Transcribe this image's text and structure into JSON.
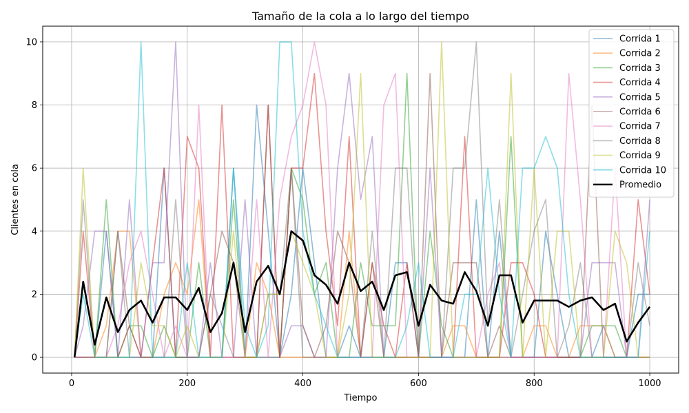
{
  "chart_data": {
    "type": "line",
    "title": "Tamaño de la cola a lo largo del tiempo",
    "xlabel": "Tiempo",
    "ylabel": "Clientes en cola",
    "xlim": [
      -50,
      1050
    ],
    "ylim": [
      -0.5,
      10.5
    ],
    "xticks": [
      0,
      200,
      400,
      600,
      800,
      1000
    ],
    "yticks": [
      0,
      2,
      4,
      6,
      8,
      10
    ],
    "grid": true,
    "legend_position": "top-right",
    "x": [
      5,
      20,
      40,
      60,
      80,
      100,
      120,
      140,
      160,
      180,
      200,
      220,
      240,
      260,
      280,
      300,
      320,
      340,
      360,
      380,
      400,
      420,
      440,
      460,
      480,
      500,
      520,
      540,
      560,
      580,
      600,
      620,
      640,
      660,
      680,
      700,
      720,
      740,
      760,
      780,
      800,
      820,
      840,
      860,
      880,
      900,
      920,
      940,
      960,
      980,
      1000
    ],
    "series": [
      {
        "name": "Corrida 1",
        "color": "#1f77b4",
        "values": [
          0,
          0,
          0,
          4,
          0,
          0,
          0,
          0,
          6,
          0,
          0,
          0,
          0,
          0,
          6,
          0,
          8,
          4,
          0,
          2,
          6,
          3,
          0,
          0,
          1,
          0,
          0,
          0,
          3,
          3,
          0,
          0,
          0,
          0,
          0,
          5,
          0,
          4,
          0,
          0,
          0,
          4,
          2,
          0,
          0,
          0,
          1,
          0,
          0,
          2,
          2
        ]
      },
      {
        "name": "Corrida 2",
        "color": "#ff7f0e",
        "values": [
          0,
          0,
          0,
          1,
          4,
          4,
          0,
          0,
          2,
          3,
          2,
          5,
          0,
          0,
          0,
          0,
          3,
          2,
          0,
          0,
          0,
          0,
          0,
          0,
          4,
          0,
          0,
          0,
          0,
          0,
          0,
          0,
          0,
          1,
          1,
          0,
          0,
          0,
          0,
          0,
          1,
          1,
          0,
          0,
          1,
          1,
          1,
          0,
          0,
          0,
          0
        ]
      },
      {
        "name": "Corrida 3",
        "color": "#2ca02c",
        "values": [
          0,
          0,
          0,
          5,
          0,
          1,
          1,
          0,
          1,
          0,
          0,
          3,
          0,
          0,
          5,
          0,
          0,
          0,
          0,
          6,
          5,
          2,
          3,
          0,
          0,
          3,
          1,
          1,
          1,
          9,
          0,
          4,
          1,
          0,
          0,
          0,
          0,
          0,
          7,
          0,
          0,
          0,
          0,
          0,
          0,
          1,
          1,
          1,
          0,
          0,
          0
        ]
      },
      {
        "name": "Corrida 4",
        "color": "#d62728",
        "values": [
          0,
          4,
          0,
          0,
          0,
          1,
          0,
          3,
          6,
          0,
          7,
          6,
          0,
          8,
          0,
          0,
          0,
          8,
          0,
          6,
          6,
          9,
          4,
          1,
          7,
          0,
          3,
          1,
          0,
          3,
          0,
          0,
          0,
          0,
          7,
          0,
          0,
          0,
          3,
          3,
          2,
          0,
          0,
          0,
          0,
          0,
          0,
          0,
          0,
          5,
          2
        ]
      },
      {
        "name": "Corrida 5",
        "color": "#9467bd",
        "values": [
          0,
          1,
          4,
          4,
          0,
          5,
          0,
          3,
          3,
          10,
          0,
          0,
          3,
          0,
          0,
          5,
          0,
          0,
          0,
          1,
          1,
          0,
          0,
          6,
          9,
          5,
          7,
          0,
          0,
          0,
          0,
          6,
          0,
          0,
          0,
          0,
          0,
          0,
          0,
          0,
          0,
          0,
          0,
          0,
          0,
          3,
          3,
          3,
          0,
          0,
          5
        ]
      },
      {
        "name": "Corrida 6",
        "color": "#8c564b",
        "values": [
          0,
          0,
          0,
          0,
          4,
          1,
          0,
          0,
          0,
          0,
          0,
          0,
          2,
          4,
          3,
          0,
          0,
          8,
          0,
          6,
          1,
          0,
          1,
          4,
          3,
          0,
          3,
          0,
          0,
          0,
          0,
          9,
          0,
          3,
          3,
          3,
          0,
          1,
          0,
          0,
          0,
          0,
          0,
          0,
          0,
          8,
          0,
          0,
          0,
          0,
          0
        ]
      },
      {
        "name": "Corrida 7",
        "color": "#e377c2",
        "values": [
          0,
          0,
          0,
          0,
          1,
          3,
          4,
          2,
          0,
          1,
          0,
          8,
          0,
          0,
          0,
          0,
          5,
          0,
          5,
          7,
          8,
          10,
          8,
          0,
          0,
          0,
          0,
          8,
          9,
          0,
          0,
          0,
          0,
          0,
          0,
          0,
          2,
          3,
          0,
          0,
          0,
          0,
          0,
          9,
          5,
          0,
          0,
          6,
          0,
          0,
          0
        ]
      },
      {
        "name": "Corrida 8",
        "color": "#7f7f7f",
        "values": [
          0,
          5,
          0,
          0,
          4,
          0,
          0,
          0,
          0,
          5,
          0,
          0,
          2,
          1,
          0,
          0,
          0,
          2,
          2,
          6,
          0,
          0,
          0,
          0,
          0,
          0,
          4,
          0,
          6,
          6,
          0,
          0,
          0,
          6,
          6,
          10,
          1,
          5,
          0,
          2,
          4,
          5,
          0,
          1,
          3,
          0,
          0,
          0,
          0,
          3,
          1
        ]
      },
      {
        "name": "Corrida 9",
        "color": "#bcbd22",
        "values": [
          0,
          6,
          0,
          0,
          0,
          0,
          3,
          1,
          1,
          0,
          1,
          0,
          0,
          0,
          4,
          0,
          0,
          2,
          2,
          4,
          3,
          2,
          0,
          0,
          2,
          9,
          0,
          0,
          0,
          0,
          0,
          0,
          10,
          0,
          0,
          0,
          0,
          0,
          9,
          0,
          6,
          0,
          4,
          4,
          0,
          0,
          0,
          4,
          3,
          0,
          0
        ]
      },
      {
        "name": "Corrida 10",
        "color": "#17becf",
        "values": [
          0,
          2,
          0,
          0,
          0,
          0,
          10,
          0,
          0,
          0,
          3,
          0,
          0,
          0,
          6,
          1,
          0,
          1,
          10,
          10,
          4,
          2,
          1,
          0,
          0,
          0,
          0,
          0,
          0,
          1,
          3,
          0,
          0,
          0,
          2,
          2,
          6,
          2,
          0,
          6,
          6,
          7,
          6,
          2,
          0,
          0,
          0,
          0,
          0,
          0,
          4
        ]
      },
      {
        "name": "Promedio",
        "color": "#000000",
        "values": [
          0,
          2.4,
          0.4,
          1.9,
          0.8,
          1.5,
          1.8,
          1.1,
          1.9,
          1.9,
          1.5,
          2.2,
          0.8,
          1.4,
          3,
          0.8,
          2.4,
          2.9,
          2,
          4,
          3.7,
          2.6,
          2.3,
          1.7,
          3,
          2.1,
          2.4,
          1.5,
          2.6,
          2.7,
          1,
          2.3,
          1.8,
          1.7,
          2.7,
          2.1,
          1,
          2.6,
          2.6,
          1.1,
          1.8,
          1.8,
          1.8,
          1.6,
          1.8,
          1.9,
          1.5,
          1.7,
          0.5,
          1.1,
          1.6
        ]
      }
    ]
  }
}
